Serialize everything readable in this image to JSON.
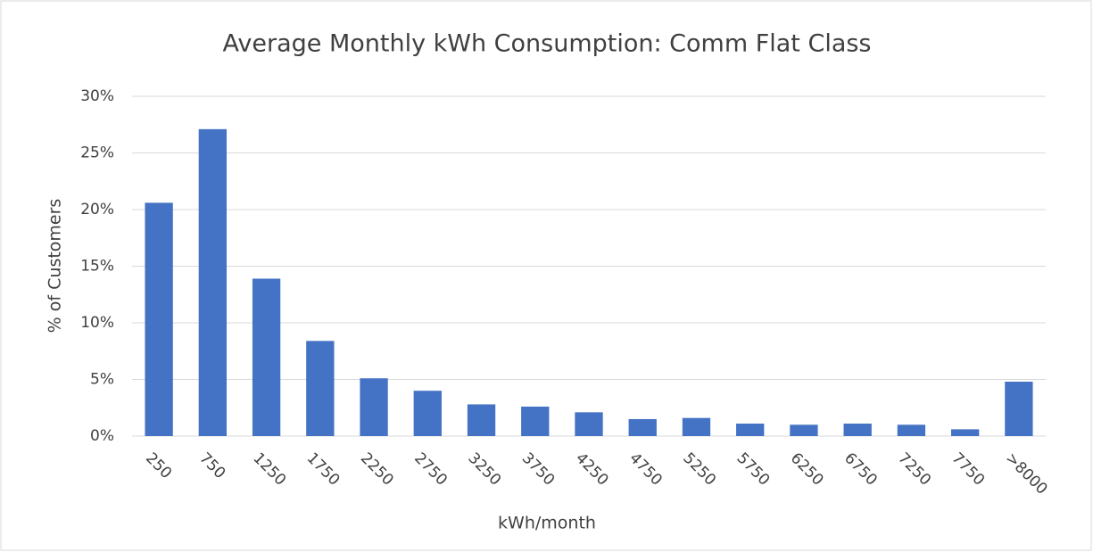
{
  "chart_data": {
    "type": "bar",
    "title": "Average Monthly kWh Consumption: Comm Flat Class",
    "x_label": "kWh/month",
    "y_label": "% of Customers",
    "categories": [
      "250",
      "750",
      "1250",
      "1750",
      "2250",
      "2750",
      "3250",
      "3750",
      "4250",
      "4750",
      "5250",
      "5750",
      "6250",
      "6750",
      "7250",
      "7750",
      ">8000"
    ],
    "values": [
      20.6,
      27.1,
      13.9,
      8.4,
      5.1,
      4.0,
      2.8,
      2.6,
      2.1,
      1.5,
      1.6,
      1.1,
      1.0,
      1.1,
      1.0,
      0.6,
      4.8
    ],
    "color": "#4472c4",
    "ylim": [
      0,
      30
    ],
    "yticks": [
      {
        "value": 0,
        "label": "0%"
      },
      {
        "value": 5,
        "label": "5%"
      },
      {
        "value": 10,
        "label": "10%"
      },
      {
        "value": 15,
        "label": "15%"
      },
      {
        "value": 20,
        "label": "20%"
      },
      {
        "value": 25,
        "label": "25%"
      },
      {
        "value": 30,
        "label": "30%"
      }
    ],
    "grid": true
  }
}
